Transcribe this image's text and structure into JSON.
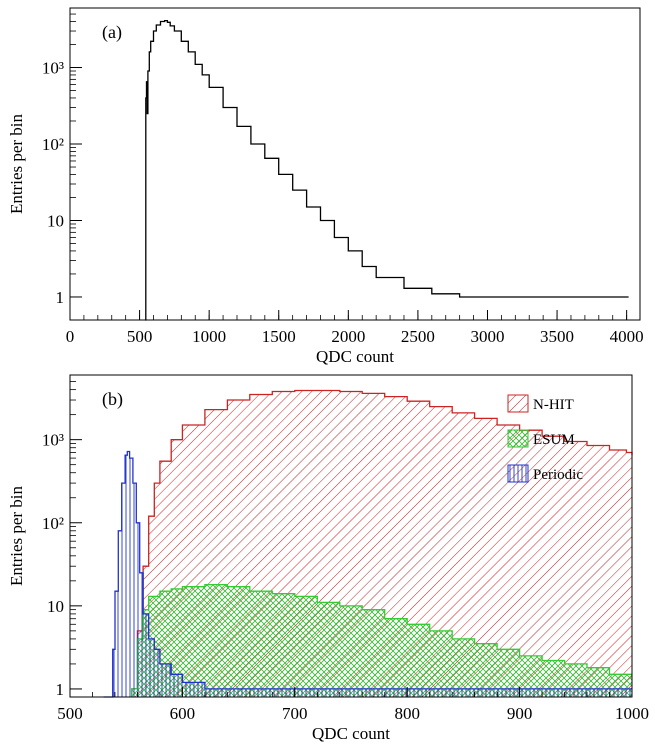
{
  "chart_data": [
    {
      "type": "histogram",
      "panel_label": "(a)",
      "xlabel": "QDC count",
      "ylabel": "Entries per bin",
      "xlim": [
        0,
        4096
      ],
      "ylim": [
        0.5,
        6000
      ],
      "yscale": "log",
      "x_ticks": [
        "0",
        "500",
        "1000",
        "1500",
        "2000",
        "2500",
        "3000",
        "3500",
        "4000"
      ],
      "y_ticks": [
        "1",
        "10",
        "10²",
        "10³"
      ],
      "grid": false,
      "series": [
        {
          "color": "#000000",
          "style": "step",
          "x": [
            540,
            545,
            550,
            555,
            560,
            570,
            580,
            600,
            620,
            650,
            680,
            700,
            720,
            750,
            800,
            850,
            900,
            950,
            1000,
            1100,
            1200,
            1300,
            1400,
            1500,
            1600,
            1700,
            1800,
            1900,
            2000,
            2100,
            2200,
            2400,
            2600,
            2800,
            3000,
            3200,
            3400,
            3600,
            3800,
            4000
          ],
          "y": [
            0.5,
            400,
            650,
            250,
            900,
            1600,
            2200,
            3000,
            3600,
            4000,
            4100,
            3900,
            3500,
            3000,
            2200,
            1600,
            1100,
            800,
            550,
            300,
            170,
            100,
            65,
            40,
            25,
            15,
            10,
            6,
            4,
            2.5,
            1.8,
            1.3,
            1.1,
            1,
            1,
            1,
            1,
            1,
            1,
            1
          ]
        }
      ]
    },
    {
      "type": "histogram",
      "panel_label": "(b)",
      "xlabel": "QDC count",
      "ylabel": "Entries per bin",
      "xlim": [
        500,
        1000
      ],
      "ylim": [
        0.8,
        6000
      ],
      "yscale": "log",
      "x_ticks": [
        "500",
        "600",
        "700",
        "800",
        "900",
        "1000"
      ],
      "y_ticks": [
        "1",
        "10",
        "10²",
        "10³"
      ],
      "grid": false,
      "legend": "top-right",
      "series": [
        {
          "name": "N-HIT",
          "color": "#cc2222",
          "fill": "hatch-diagonal",
          "x": [
            555,
            560,
            565,
            570,
            575,
            580,
            590,
            600,
            620,
            640,
            660,
            680,
            700,
            720,
            740,
            760,
            780,
            800,
            820,
            840,
            860,
            880,
            900,
            920,
            940,
            960,
            980,
            995,
            1000
          ],
          "y": [
            1,
            5,
            30,
            120,
            300,
            550,
            1000,
            1500,
            2300,
            3000,
            3500,
            3800,
            3900,
            3900,
            3800,
            3600,
            3300,
            2900,
            2500,
            2100,
            1800,
            1500,
            1300,
            1100,
            950,
            850,
            750,
            700,
            650
          ]
        },
        {
          "name": "ESUM",
          "color": "#33cc33",
          "fill": "hatch-cross",
          "x": [
            555,
            560,
            565,
            570,
            580,
            590,
            600,
            620,
            640,
            660,
            680,
            700,
            720,
            740,
            760,
            780,
            800,
            820,
            840,
            860,
            880,
            900,
            920,
            940,
            960,
            980,
            1000
          ],
          "y": [
            1,
            4,
            9,
            13,
            15,
            16,
            17,
            18,
            17,
            15,
            14,
            13,
            11,
            10,
            9,
            7,
            6,
            5,
            4,
            3.5,
            3,
            2.5,
            2.2,
            2,
            1.8,
            1.5,
            1.5
          ]
        },
        {
          "name": "Periodic",
          "color": "#2233cc",
          "fill": "hatch-vertical",
          "x": [
            530,
            535,
            538,
            540,
            543,
            546,
            549,
            551,
            553,
            556,
            559,
            562,
            565,
            570,
            575,
            580,
            590,
            600,
            620,
            660,
            700,
            800,
            900,
            1000
          ],
          "y": [
            0.8,
            0.8,
            3,
            15,
            80,
            300,
            650,
            720,
            600,
            300,
            100,
            25,
            8,
            4,
            3,
            2,
            1.5,
            1.2,
            1,
            1,
            1,
            1,
            1,
            1
          ]
        }
      ]
    }
  ]
}
